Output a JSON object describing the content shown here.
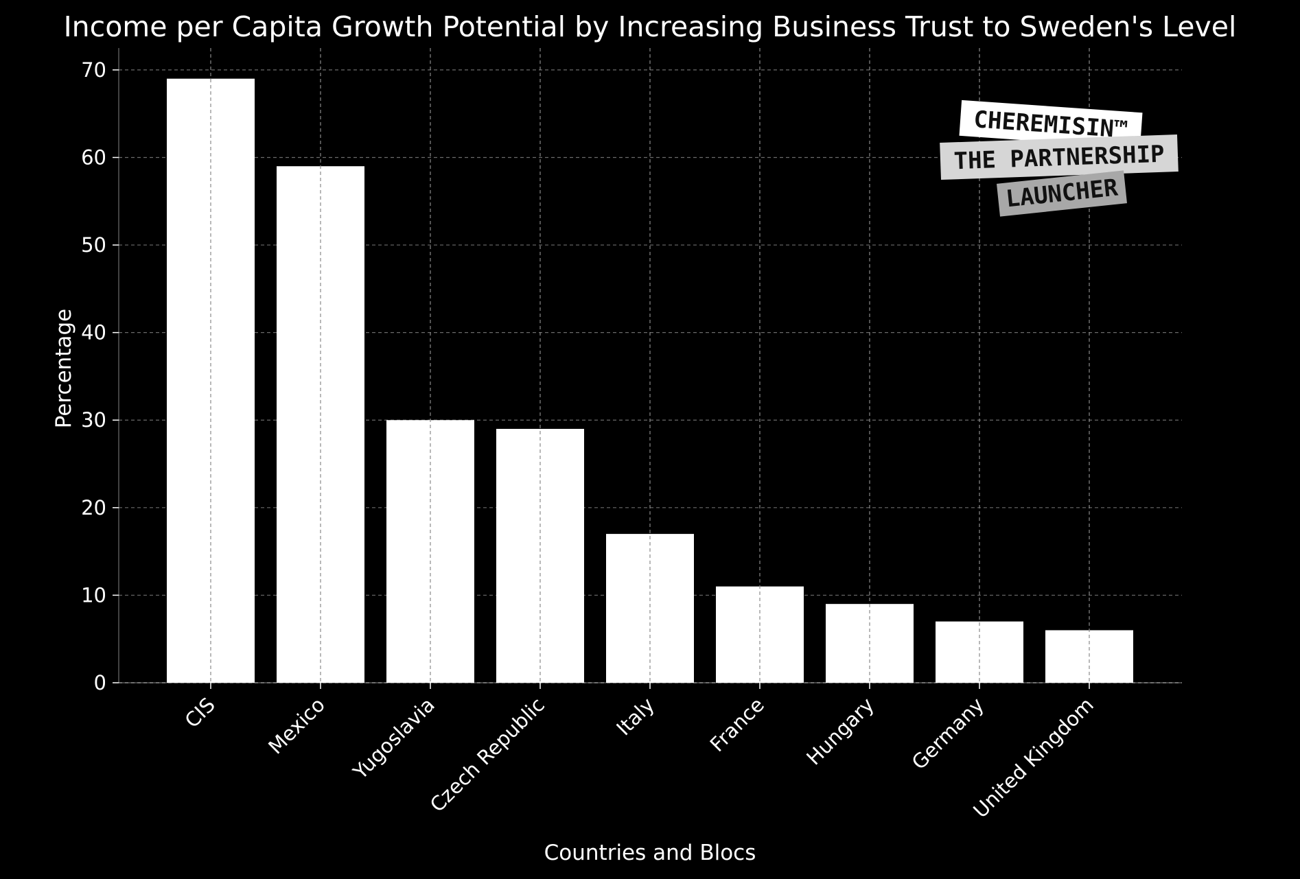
{
  "chart_data": {
    "type": "bar",
    "title": "Income per Capita Growth Potential by Increasing Business Trust to Sweden's Level",
    "xlabel": "Countries and Blocs",
    "ylabel": "Percentage",
    "categories": [
      "CIS",
      "Mexico",
      "Yugoslavia",
      "Czech Republic",
      "Italy",
      "France",
      "Hungary",
      "Germany",
      "United Kingdom"
    ],
    "values": [
      69,
      59,
      30,
      29,
      17,
      11,
      9,
      7,
      6
    ],
    "ylim": [
      0,
      72.5
    ],
    "yticks": [
      0,
      10,
      20,
      30,
      40,
      50,
      60,
      70
    ],
    "grid": true,
    "bar_color": "#ffffff",
    "background_color": "#000000"
  },
  "watermark": {
    "lines": [
      "CHEREMISIN™",
      "THE PARTNERSHIP",
      "LAUNCHER"
    ]
  }
}
